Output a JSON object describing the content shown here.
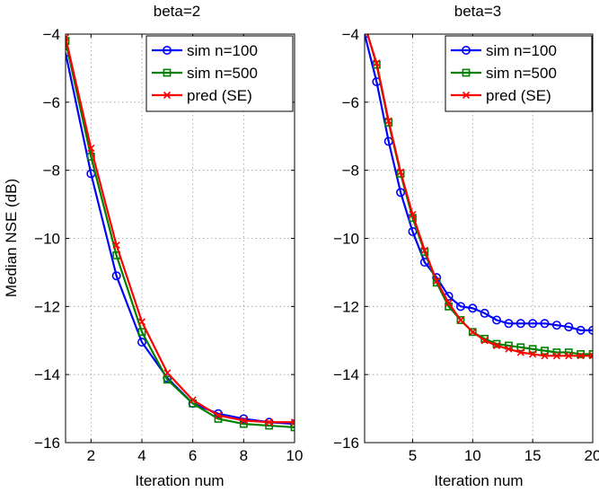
{
  "chart_data": [
    {
      "type": "line",
      "title": "beta=2",
      "xlabel": "Iteration num",
      "ylabel": "Median NSE (dB)",
      "xlim": [
        1,
        10
      ],
      "ylim": [
        -16,
        -4
      ],
      "xticks": [
        2,
        4,
        6,
        8,
        10
      ],
      "yticks": [
        -4,
        -6,
        -8,
        -10,
        -12,
        -14,
        -16
      ],
      "grid": true,
      "legend_position": "top-right",
      "series": [
        {
          "name": "sim n=100",
          "color": "#0000ff",
          "marker": "circle",
          "x": [
            1,
            2,
            3,
            4,
            5,
            6,
            7,
            8,
            9,
            10
          ],
          "y": [
            -4.55,
            -8.1,
            -11.1,
            -13.05,
            -14.1,
            -14.85,
            -15.15,
            -15.3,
            -15.4,
            -15.45
          ]
        },
        {
          "name": "sim n=500",
          "color": "#008000",
          "marker": "square",
          "x": [
            1,
            2,
            3,
            4,
            5,
            6,
            7,
            8,
            9,
            10
          ],
          "y": [
            -4.2,
            -7.6,
            -10.5,
            -12.75,
            -14.15,
            -14.85,
            -15.3,
            -15.45,
            -15.5,
            -15.55
          ]
        },
        {
          "name": "pred (SE)",
          "color": "#ff0000",
          "marker": "x",
          "x": [
            1,
            2,
            3,
            4,
            5,
            6,
            7,
            8,
            9,
            10
          ],
          "y": [
            -4.1,
            -7.35,
            -10.2,
            -12.45,
            -13.95,
            -14.75,
            -15.2,
            -15.35,
            -15.4,
            -15.4
          ]
        }
      ]
    },
    {
      "type": "line",
      "title": "beta=3",
      "xlabel": "Iteration num",
      "ylabel": "",
      "xlim": [
        1,
        20
      ],
      "ylim": [
        -16,
        -4
      ],
      "xticks": [
        5,
        10,
        15,
        20
      ],
      "yticks": [
        -4,
        -6,
        -8,
        -10,
        -12,
        -14,
        -16
      ],
      "grid": true,
      "legend_position": "top-right",
      "series": [
        {
          "name": "sim n=100",
          "color": "#0000ff",
          "marker": "circle",
          "x": [
            1,
            2,
            3,
            4,
            5,
            6,
            7,
            8,
            9,
            10,
            11,
            12,
            13,
            14,
            15,
            16,
            17,
            18,
            19,
            20
          ],
          "y": [
            -4,
            -5.4,
            -7.15,
            -8.65,
            -9.8,
            -10.7,
            -11.15,
            -11.7,
            -12.0,
            -12.05,
            -12.2,
            -12.4,
            -12.5,
            -12.5,
            -12.5,
            -12.5,
            -12.55,
            -12.6,
            -12.7,
            -12.7
          ]
        },
        {
          "name": "sim n=500",
          "color": "#008000",
          "marker": "square",
          "x": [
            1,
            2,
            3,
            4,
            5,
            6,
            7,
            8,
            9,
            10,
            11,
            12,
            13,
            14,
            15,
            16,
            17,
            18,
            19,
            20
          ],
          "y": [
            -3.7,
            -4.9,
            -6.6,
            -8.1,
            -9.4,
            -10.4,
            -11.3,
            -12.0,
            -12.4,
            -12.75,
            -12.95,
            -13.1,
            -13.15,
            -13.2,
            -13.25,
            -13.3,
            -13.35,
            -13.35,
            -13.4,
            -13.4
          ]
        },
        {
          "name": "pred (SE)",
          "color": "#ff0000",
          "marker": "x",
          "x": [
            1,
            2,
            3,
            4,
            5,
            6,
            7,
            8,
            9,
            10,
            11,
            12,
            13,
            14,
            15,
            16,
            17,
            18,
            19,
            20
          ],
          "y": [
            -3.75,
            -4.85,
            -6.55,
            -8.05,
            -9.3,
            -10.35,
            -11.25,
            -11.9,
            -12.4,
            -12.75,
            -13.0,
            -13.15,
            -13.25,
            -13.35,
            -13.4,
            -13.45,
            -13.45,
            -13.45,
            -13.45,
            -13.45
          ]
        }
      ]
    }
  ]
}
